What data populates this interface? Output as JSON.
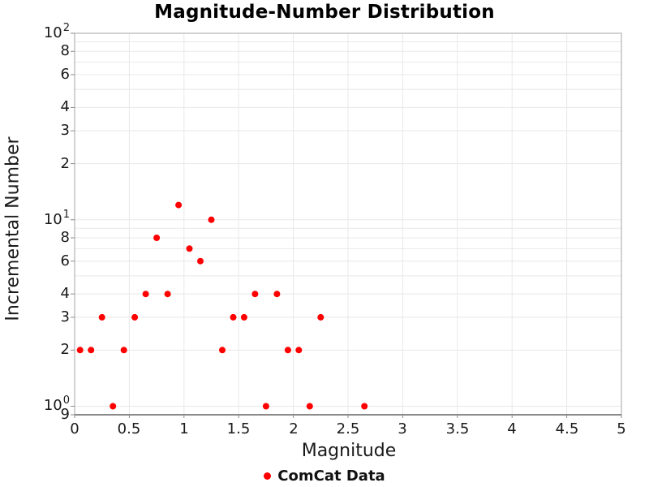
{
  "title": "Magnitude-Number Distribution",
  "legend": {
    "label": "ComCat Data",
    "marker": "red-circle-icon"
  },
  "colors": {
    "point": "#ff0000",
    "grid": "#e8e8e8",
    "border": "#b4b4b4",
    "axis_line": "#8a8a8a",
    "tick_text": "#1a1a1a"
  },
  "chart_data": {
    "type": "scatter",
    "title": "Magnitude-Number Distribution",
    "xlabel": "Magnitude",
    "ylabel": "Incremental Number",
    "x_scale": "linear",
    "y_scale": "log",
    "xlim": [
      0,
      5
    ],
    "ylim": [
      0.9,
      100
    ],
    "grid": true,
    "legend_position": "bottom-center",
    "series": [
      {
        "name": "ComCat Data",
        "color": "#ff0000",
        "marker": "circle",
        "points": [
          [
            0.05,
            2
          ],
          [
            0.15,
            2
          ],
          [
            0.25,
            3
          ],
          [
            0.35,
            1
          ],
          [
            0.45,
            2
          ],
          [
            0.55,
            3
          ],
          [
            0.65,
            4
          ],
          [
            0.75,
            8
          ],
          [
            0.85,
            4
          ],
          [
            0.95,
            12
          ],
          [
            1.05,
            7
          ],
          [
            1.15,
            6
          ],
          [
            1.25,
            10
          ],
          [
            1.35,
            2
          ],
          [
            1.45,
            3
          ],
          [
            1.55,
            3
          ],
          [
            1.65,
            4
          ],
          [
            1.75,
            1
          ],
          [
            1.85,
            4
          ],
          [
            1.95,
            2
          ],
          [
            2.05,
            2
          ],
          [
            2.15,
            1
          ],
          [
            2.25,
            3
          ],
          [
            2.65,
            1
          ]
        ]
      }
    ],
    "x_ticks": [
      {
        "value": 0,
        "label": "0"
      },
      {
        "value": 0.5,
        "label": "0.5"
      },
      {
        "value": 1,
        "label": "1"
      },
      {
        "value": 1.5,
        "label": "1.5"
      },
      {
        "value": 2,
        "label": "2"
      },
      {
        "value": 2.5,
        "label": "2.5"
      },
      {
        "value": 3,
        "label": "3"
      },
      {
        "value": 3.5,
        "label": "3.5"
      },
      {
        "value": 4,
        "label": "4"
      },
      {
        "value": 4.5,
        "label": "4.5"
      },
      {
        "value": 5,
        "label": "5"
      }
    ],
    "y_ticks": [
      {
        "value": 100,
        "type": "major",
        "base": "10",
        "exp": "2"
      },
      {
        "value": 80,
        "type": "minor",
        "label": "8"
      },
      {
        "value": 60,
        "type": "minor",
        "label": "6"
      },
      {
        "value": 40,
        "type": "minor",
        "label": "4"
      },
      {
        "value": 30,
        "type": "minor",
        "label": "3"
      },
      {
        "value": 20,
        "type": "minor",
        "label": "2"
      },
      {
        "value": 10,
        "type": "major",
        "base": "10",
        "exp": "1"
      },
      {
        "value": 8,
        "type": "minor",
        "label": "8"
      },
      {
        "value": 6,
        "type": "minor",
        "label": "6"
      },
      {
        "value": 4,
        "type": "minor",
        "label": "4"
      },
      {
        "value": 3,
        "type": "minor",
        "label": "3"
      },
      {
        "value": 2,
        "type": "minor",
        "label": "2"
      },
      {
        "value": 1,
        "type": "major",
        "base": "10",
        "exp": "0"
      },
      {
        "value": 0.9,
        "type": "minor",
        "label": "9"
      }
    ]
  }
}
